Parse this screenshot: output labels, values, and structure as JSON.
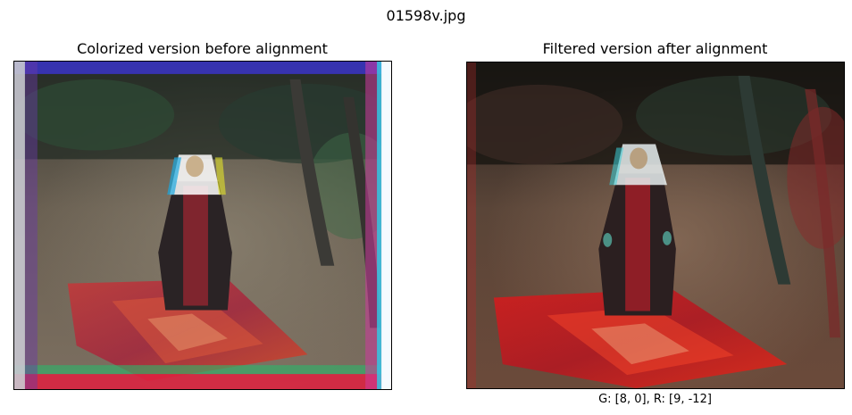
{
  "figure": {
    "suptitle": "01598v.jpg"
  },
  "panels": [
    {
      "title": "Colorized version before alignment",
      "xlabel": ""
    },
    {
      "title": "Filtered version after alignment",
      "xlabel": "G: [8, 0], R: [9, -12]"
    }
  ]
}
